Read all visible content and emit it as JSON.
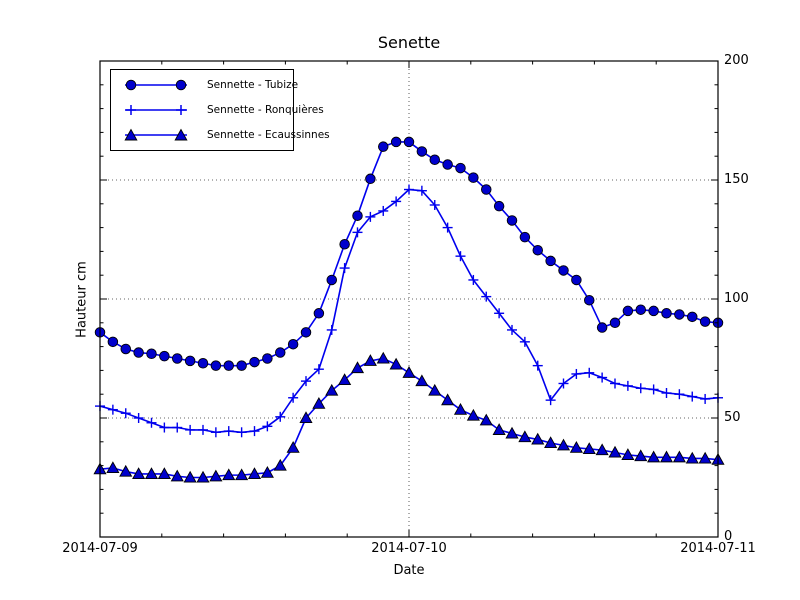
{
  "chart_data": {
    "type": "line",
    "title": "Senette",
    "xlabel": "Date",
    "ylabel": "Hauteur cm",
    "x_tick_labels": [
      "2014-07-09",
      "2014-07-10",
      "2014-07-11"
    ],
    "x_tick_hours": [
      0,
      24,
      48
    ],
    "y_ticks": [
      0,
      50,
      100,
      150,
      200
    ],
    "ylim": [
      0,
      200
    ],
    "x_span_hours": 48,
    "x_interval_hours": 1,
    "grid": {
      "horizontal_values": [
        50,
        100,
        150
      ],
      "vertical_hours": [
        24
      ],
      "style": "dotted"
    },
    "legend_position": "upper-left",
    "colors": {
      "line": "#0000ee",
      "marker_fill": "#0000cc",
      "marker_edge": "#000000",
      "axis": "#000000",
      "background": "#ffffff"
    },
    "series": [
      {
        "name": "Sennette - Tubize",
        "marker": "circle",
        "values": [
          86,
          82,
          79,
          77.5,
          77,
          76,
          75,
          74,
          73,
          72,
          72,
          72,
          73.5,
          75,
          77.5,
          81,
          86,
          94,
          108,
          123,
          135,
          150.5,
          164,
          166,
          166,
          162,
          158.5,
          156.5,
          155,
          151,
          146,
          139,
          133,
          126,
          120.5,
          116,
          112,
          108,
          99.5,
          88,
          90,
          95,
          95.5,
          95,
          94,
          93.5,
          92.5,
          90.5,
          90
        ]
      },
      {
        "name": "Sennette - Ronquières",
        "marker": "plus",
        "values": [
          55,
          53.5,
          52,
          50,
          48,
          46,
          46,
          45,
          45,
          44,
          44.5,
          44,
          44.5,
          46.5,
          50.5,
          58.5,
          65.5,
          70.5,
          87,
          113,
          128,
          134.5,
          137,
          141,
          146,
          145.5,
          139.5,
          130,
          118,
          108,
          101,
          94,
          87,
          82,
          72,
          57.5,
          64.5,
          68.5,
          69,
          67,
          64.5,
          63.5,
          62.5,
          62,
          60.5,
          60,
          59,
          58,
          58.5
        ]
      },
      {
        "name": "Sennette - Ecaussinnes",
        "marker": "triangle",
        "values": [
          28.5,
          29,
          27.5,
          26.5,
          26.5,
          26.5,
          25.5,
          25,
          25,
          25.5,
          26,
          26,
          26.5,
          27,
          30,
          37.5,
          50,
          56,
          61.5,
          66,
          71,
          74,
          75,
          72.5,
          69,
          65.5,
          61.5,
          57.5,
          53.5,
          51,
          49,
          45,
          43.5,
          42,
          41,
          39.5,
          38.5,
          37.5,
          37,
          36.5,
          35.5,
          34.5,
          34,
          33.5,
          33.5,
          33.5,
          33,
          33,
          32.5
        ]
      }
    ]
  }
}
